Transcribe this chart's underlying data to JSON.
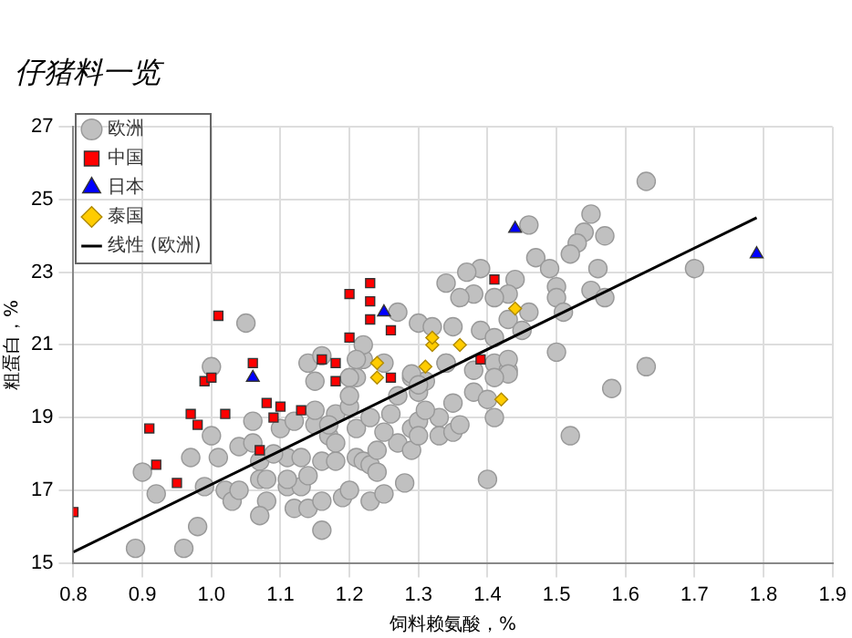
{
  "chart_data": {
    "type": "scatter",
    "title": "仔猪料一览",
    "xlabel": "饲料赖氨酸，%",
    "ylabel": "粗蛋白，%",
    "xlim": [
      0.8,
      1.9
    ],
    "xticks": [
      0.8,
      0.9,
      {
        "value": 1,
        "label": "1.0"
      },
      1.1,
      1.2,
      1.3,
      1.4,
      1.5,
      1.6,
      1.7,
      1.8,
      1.9
    ],
    "ylim": [
      15,
      27
    ],
    "yticks": [
      15,
      17,
      19,
      21,
      23,
      25,
      27
    ],
    "grid": true,
    "legend": "top left",
    "series": [
      {
        "name": "欧洲",
        "type": "scatter",
        "marker": "circle",
        "color": "#c0c0c0",
        "x": [
          0.89,
          0.96,
          0.9,
          0.92,
          0.97,
          0.98,
          0.99,
          1.0,
          1.0,
          1.01,
          1.02,
          1.03,
          1.04,
          1.04,
          1.06,
          1.06,
          1.07,
          1.07,
          1.08,
          1.07,
          1.08,
          1.1,
          1.11,
          1.11,
          1.12,
          1.13,
          1.13,
          1.14,
          1.14,
          1.15,
          1.16,
          1.16,
          1.16,
          1.17,
          1.18,
          1.18,
          1.19,
          1.2,
          1.2,
          1.21,
          1.21,
          1.22,
          1.23,
          1.23,
          1.24,
          1.24,
          1.26,
          1.27,
          1.28,
          1.29,
          1.29,
          1.29,
          1.3,
          1.31,
          1.21,
          1.22,
          1.29,
          1.3,
          1.3,
          1.3,
          1.33,
          1.33,
          1.35,
          1.35,
          1.34,
          1.36,
          1.38,
          1.4,
          1.41,
          1.41,
          1.43,
          1.4,
          1.5,
          1.52,
          1.58,
          1.63,
          1.63,
          1.55,
          1.46,
          1.54,
          1.57,
          1.53,
          1.52,
          1.47,
          1.49,
          1.56,
          1.7,
          1.39,
          1.37,
          1.34,
          1.5,
          1.38,
          1.44,
          1.36,
          1.55,
          1.57,
          1.5,
          1.43,
          1.41,
          1.46,
          1.51,
          1.43,
          1.3,
          1.32,
          1.35,
          1.39,
          1.45,
          1.41,
          1.43,
          1.43,
          1.41,
          1.38,
          1.34,
          1.05,
          1.14,
          1.16,
          1.22,
          1.21,
          1.27,
          1.15,
          1.2,
          1.25,
          1.12,
          1.18,
          1.25,
          1.31,
          1.09,
          1.15,
          1.2,
          1.23,
          1.17,
          1.27,
          1.11,
          1.25
        ],
        "values": [
          15.4,
          15.4,
          17.5,
          16.9,
          17.9,
          16.0,
          17.1,
          20.4,
          18.5,
          17.9,
          17.0,
          16.7,
          17.0,
          18.2,
          18.9,
          18.3,
          17.8,
          17.3,
          16.7,
          16.3,
          17.3,
          18.7,
          17.9,
          17.1,
          16.5,
          17.1,
          17.9,
          16.5,
          17.4,
          18.8,
          15.9,
          16.7,
          17.8,
          18.5,
          19.1,
          17.8,
          16.8,
          17.0,
          19.3,
          18.7,
          17.9,
          17.8,
          16.7,
          17.7,
          18.1,
          17.5,
          19.1,
          18.3,
          17.2,
          20.1,
          18.7,
          18.1,
          19.7,
          20.0,
          20.1,
          20.6,
          20.2,
          19.9,
          18.9,
          18.5,
          19.0,
          18.5,
          18.6,
          19.4,
          20.5,
          18.8,
          19.7,
          19.5,
          19.0,
          20.5,
          20.3,
          17.3,
          20.8,
          18.5,
          19.8,
          20.4,
          25.5,
          24.6,
          24.3,
          24.1,
          24.0,
          23.8,
          23.5,
          23.4,
          23.1,
          23.1,
          23.1,
          23.1,
          23.0,
          22.7,
          22.6,
          22.4,
          22.8,
          22.3,
          22.5,
          22.3,
          22.3,
          22.4,
          22.3,
          21.9,
          21.9,
          21.7,
          21.6,
          21.5,
          21.5,
          21.4,
          21.4,
          21.2,
          20.6,
          20.2,
          20.1,
          20.3,
          20.5,
          21.6,
          20.5,
          20.7,
          21.0,
          20.6,
          21.9,
          20.0,
          20.1,
          20.5,
          18.9,
          18.3,
          18.6,
          19.2,
          18.0,
          19.2,
          19.6,
          19.0,
          18.8,
          19.6,
          17.3,
          16.9
        ]
      },
      {
        "name": "中国",
        "type": "scatter",
        "marker": "square",
        "color": "#ff0000",
        "x": [
          0.8,
          0.91,
          0.92,
          0.95,
          0.97,
          0.98,
          0.99,
          1.0,
          1.02,
          1.01,
          1.06,
          1.07,
          1.08,
          1.09,
          1.1,
          1.13,
          1.16,
          1.18,
          1.18,
          1.2,
          1.2,
          1.23,
          1.23,
          1.23,
          1.26,
          1.26,
          1.41,
          1.39
        ],
        "values": [
          16.4,
          18.7,
          17.7,
          17.2,
          19.1,
          18.8,
          20.0,
          20.1,
          19.1,
          21.8,
          20.5,
          18.1,
          19.4,
          19.0,
          19.3,
          19.2,
          20.6,
          20.5,
          20.0,
          21.2,
          22.4,
          22.7,
          22.2,
          21.7,
          21.4,
          20.1,
          22.8,
          20.6
        ]
      },
      {
        "name": "日本",
        "type": "scatter",
        "marker": "triangle",
        "color": "#0000ff",
        "x": [
          1.25,
          1.06,
          1.44,
          1.79
        ],
        "values": [
          21.9,
          20.1,
          24.2,
          23.5
        ]
      },
      {
        "name": "泰国",
        "type": "scatter",
        "marker": "diamond",
        "color": "#ffcc00",
        "x": [
          1.24,
          1.24,
          1.31,
          1.32,
          1.32,
          1.36,
          1.44,
          1.42
        ],
        "values": [
          20.5,
          20.1,
          20.4,
          21.0,
          21.2,
          21.0,
          22.0,
          19.5
        ]
      },
      {
        "name": "线性 (欧洲)",
        "type": "line",
        "marker": "none",
        "color": "#000000",
        "x": [
          0.8,
          1.79
        ],
        "values": [
          15.3,
          24.5
        ]
      }
    ]
  }
}
